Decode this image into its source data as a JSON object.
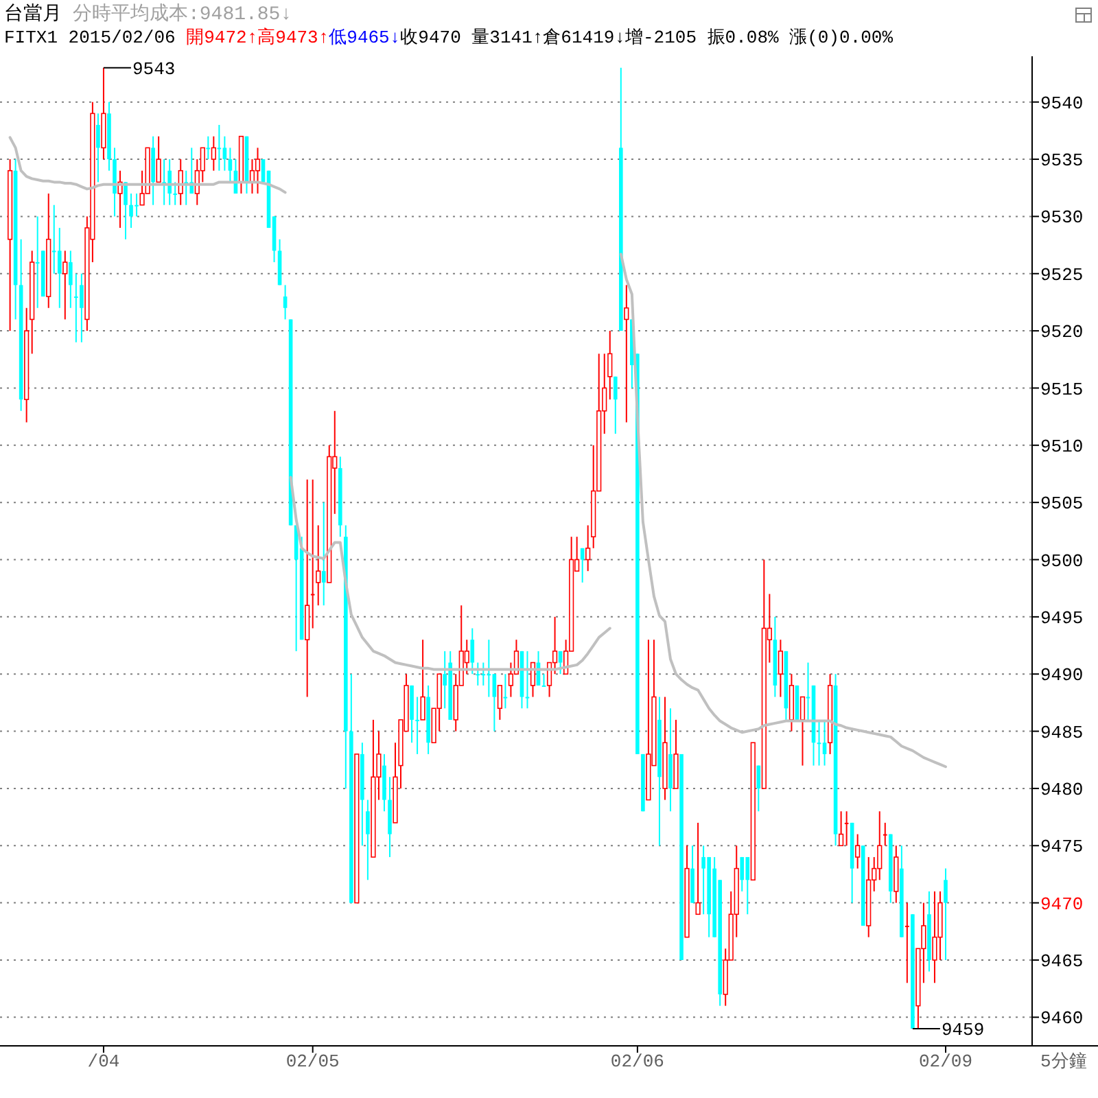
{
  "chart_data": {
    "type": "candlestick",
    "title": "台當月",
    "subtitle": "分時平均成本:9481.85↓",
    "annotations": [
      "FITX1 2015/02/06 ",
      "開9472↑",
      "高9473↑",
      "低9465↓",
      "收9470 量3141↑倉61419↓增-2105 振0.08% 漲(0)0.00%",
      "9543",
      "9459",
      "5分鐘"
    ],
    "categories": [
      null,
      null,
      null,
      null,
      null,
      null,
      null,
      null,
      null,
      null,
      null,
      null,
      null,
      null,
      null,
      null,
      null,
      "/04",
      null,
      null,
      null,
      null,
      null,
      null,
      null,
      null,
      null,
      null,
      null,
      null,
      null,
      null,
      null,
      null,
      null,
      null,
      null,
      null,
      null,
      null,
      null,
      null,
      null,
      null,
      null,
      null,
      null,
      null,
      null,
      null,
      null,
      null,
      null,
      null,
      null,
      "02/05",
      null,
      null,
      null,
      null,
      null,
      null,
      null,
      null,
      null,
      null,
      null,
      null,
      null,
      null,
      null,
      null,
      null,
      null,
      null,
      null,
      null,
      null,
      null,
      null,
      null,
      null,
      null,
      null,
      null,
      null,
      null,
      null,
      null,
      null,
      null,
      null,
      null,
      null,
      null,
      null,
      null,
      null,
      null,
      null,
      null,
      null,
      null,
      null,
      null,
      null,
      null,
      null,
      null,
      null,
      null,
      null,
      null,
      null,
      "02/06",
      null,
      null,
      null,
      null,
      null,
      null,
      null,
      null,
      null,
      null,
      null,
      null,
      null,
      null,
      null,
      null,
      null,
      null,
      null,
      null,
      null,
      null,
      null,
      null,
      null,
      null,
      null,
      null,
      null,
      null,
      null,
      null,
      null,
      null,
      null,
      null,
      null,
      null,
      null,
      null,
      null,
      null,
      null,
      null,
      null,
      null,
      null,
      null,
      null,
      null,
      null,
      null,
      null,
      null,
      null,
      "02/09"
    ],
    "colors": [
      "#ff0000",
      "#00ffff",
      "#00ffff",
      "#ff0000",
      "#ff0000",
      "#00ffff",
      "#00ffff",
      "#ff0000",
      "#00ffff",
      "#00ffff",
      "#ff0000",
      "#00ffff",
      "#00ffff",
      "#00ffff",
      "#ff0000",
      "#ff0000",
      "#00ffff",
      "#ff0000",
      "#00ffff",
      "#00ffff",
      "#ff0000",
      "#00ffff",
      "#00ffff",
      "#00ffff",
      "#ff0000",
      "#ff0000",
      "#00ffff",
      "#ff0000",
      "#00ffff",
      "#00ffff",
      "#00ffff",
      "#ff0000",
      "#00ffff",
      "#00ffff",
      "#ff0000",
      "#ff0000",
      "#00ffff",
      "#ff0000",
      "#00ffff",
      "#00ffff",
      "#00ffff",
      "#00ffff",
      "#ff0000",
      "#00ffff",
      "#ff0000",
      "#ff0000",
      "#00ffff",
      "#00ffff",
      "#00ffff",
      "#00ffff",
      "#00ffff",
      "#00ffff",
      "#00ffff",
      "#00ffff",
      "#ff0000",
      "#ff0000",
      "#ff0000",
      "#00ffff",
      "#ff0000",
      "#ff0000",
      "#00ffff",
      "#00ffff",
      "#00ffff",
      "#ff0000",
      "#00ffff",
      "#00ffff",
      "#ff0000",
      "#ff0000",
      "#00ffff",
      "#00ffff",
      "#ff0000",
      "#ff0000",
      "#ff0000",
      "#00ffff",
      "#00ffff",
      "#ff0000",
      "#00ffff",
      "#ff0000",
      "#ff0000",
      "#00ffff",
      "#00ffff",
      "#ff0000",
      "#ff0000",
      "#ff0000",
      "#00ffff",
      "#00ffff",
      "#00ffff",
      "#00ffff",
      "#00ffff",
      "#ff0000",
      "#00ffff",
      "#ff0000",
      "#ff0000",
      "#00ffff",
      "#00ffff",
      "#ff0000",
      "#00ffff",
      "#00ffff",
      "#ff0000",
      "#ff0000",
      "#00ffff",
      "#ff0000",
      "#ff0000",
      "#ff0000",
      "#00ffff",
      "#ff0000",
      "#ff0000",
      "#ff0000",
      "#ff0000",
      "#ff0000",
      "#00ffff",
      "#00ffff",
      "#ff0000",
      "#00ffff",
      "#00ffff",
      "#00ffff",
      "#ff0000",
      "#ff0000",
      "#00ffff",
      "#ff0000",
      "#00ffff",
      "#ff0000",
      "#00ffff",
      "#ff0000",
      "#00ffff",
      "#ff0000",
      "#00ffff",
      "#00ffff",
      "#00ffff",
      "#00ffff",
      "#ff0000",
      "#ff0000",
      "#ff0000",
      "#00ffff",
      "#00ffff",
      "#ff0000",
      "#00ffff",
      "#ff0000",
      "#ff0000",
      "#00ffff",
      "#ff0000",
      "#00ffff",
      "#ff0000",
      "#00ffff",
      "#ff0000",
      "#00ffff",
      "#00ffff",
      "#00ffff",
      "#00ffff",
      "#ff0000",
      "#00ffff",
      "#ff0000",
      "#ff0000",
      "#00ffff",
      "#ff0000",
      "#00ffff",
      "#ff0000",
      "#ff0000",
      "#ff0000",
      "#ff0000",
      "#00ffff",
      "#ff0000",
      "#00ffff",
      "#ff0000",
      "#00ffff",
      "#ff0000",
      "#ff0000",
      "#00ffff",
      "#ff0000",
      "#ff0000",
      "#00ffff"
    ],
    "ohlc": [
      [
        9528,
        9535,
        9520,
        9534
      ],
      [
        9534,
        9535,
        9521,
        9524
      ],
      [
        9524,
        9528,
        9513,
        9514
      ],
      [
        9514,
        9522,
        9512,
        9520
      ],
      [
        9521,
        9527,
        9518,
        9526
      ],
      [
        9526,
        9530,
        9522,
        9526
      ],
      [
        9527,
        9527,
        9523,
        9523
      ],
      [
        9523,
        9532,
        9522,
        9528
      ],
      [
        9527,
        9531,
        9525,
        9527
      ],
      [
        9527,
        9529,
        9522,
        9525
      ],
      [
        9525,
        9527,
        9521,
        9526
      ],
      [
        9526,
        9527,
        9522,
        9524
      ],
      [
        9523,
        9525,
        9519,
        9523
      ],
      [
        9524,
        9525,
        9519,
        9522
      ],
      [
        9521,
        9530,
        9520,
        9529
      ],
      [
        9528,
        9540,
        9526,
        9539
      ],
      [
        9538,
        9539,
        9533,
        9536
      ],
      [
        9536,
        9543,
        9535,
        9539
      ],
      [
        9539,
        9540,
        9534,
        9535
      ],
      [
        9535,
        9536,
        9530,
        9532
      ],
      [
        9532,
        9534,
        9529,
        9533
      ],
      [
        9533,
        9533,
        9528,
        9531
      ],
      [
        9531,
        9532,
        9529,
        9530
      ],
      [
        9531,
        9532,
        9530,
        9531
      ],
      [
        9531,
        9534,
        9531,
        9532
      ],
      [
        9532,
        9536,
        9532,
        9536
      ],
      [
        9536,
        9537,
        9531,
        9533
      ],
      [
        9533,
        9537,
        9533,
        9535
      ],
      [
        9533,
        9535,
        9531,
        9533
      ],
      [
        9534,
        9535,
        9531,
        9532
      ],
      [
        9532,
        9533,
        9531,
        9532
      ],
      [
        9532,
        9535,
        9531,
        9534
      ],
      [
        9533,
        9534,
        9531,
        9533
      ],
      [
        9533,
        9536,
        9532,
        9532
      ],
      [
        9532,
        9535,
        9531,
        9534
      ],
      [
        9534,
        9536,
        9533,
        9536
      ],
      [
        9536,
        9537,
        9535,
        9536
      ],
      [
        9535,
        9537,
        9534,
        9536
      ],
      [
        9536,
        9538,
        9534,
        9536
      ],
      [
        9536,
        9537,
        9534,
        9535
      ],
      [
        9535,
        9536,
        9533,
        9534
      ],
      [
        9534,
        9535,
        9532,
        9532
      ],
      [
        9533,
        9537,
        9532,
        9537
      ],
      [
        9537,
        9537,
        9532,
        9533
      ],
      [
        9533,
        9535,
        9532,
        9534
      ],
      [
        9534,
        9536,
        9532,
        9535
      ],
      [
        9535,
        9535,
        9533,
        9533
      ],
      [
        9534,
        9534,
        9529,
        9529
      ],
      [
        9530,
        9530,
        9526,
        9527
      ],
      [
        9527,
        9528,
        9524,
        9524
      ],
      [
        9523,
        9524,
        9521,
        9522
      ],
      [
        9521,
        9521,
        9503,
        9503
      ],
      [
        9503,
        9503,
        9492,
        9500
      ],
      [
        9501,
        9502,
        9493,
        9493
      ],
      [
        9493,
        9507,
        9488,
        9496
      ],
      [
        9497,
        9507,
        9494,
        9497
      ],
      [
        9498,
        9503,
        9496,
        9499
      ],
      [
        9499,
        9505,
        9496,
        9498
      ],
      [
        9498,
        9510,
        9498,
        9509
      ],
      [
        9508,
        9513,
        9504,
        9509
      ],
      [
        9508,
        9509,
        9502,
        9503
      ],
      [
        9502,
        9503,
        9480,
        9485
      ],
      [
        9485,
        9490,
        9470,
        9470
      ],
      [
        9470,
        9483,
        9470,
        9483
      ],
      [
        9483,
        9484,
        9475,
        9479
      ],
      [
        9478,
        9479,
        9472,
        9476
      ],
      [
        9474,
        9486,
        9474,
        9481
      ],
      [
        9481,
        9485,
        9479,
        9483
      ],
      [
        9482,
        9483,
        9478,
        9479
      ],
      [
        9479,
        9481,
        9474,
        9476
      ],
      [
        9477,
        9484,
        9477,
        9481
      ],
      [
        9482,
        9486,
        9480,
        9486
      ],
      [
        9485,
        9490,
        9485,
        9489
      ],
      [
        9489,
        9489,
        9484,
        9486
      ],
      [
        9486,
        9488,
        9483,
        9486
      ],
      [
        9486,
        9493,
        9486,
        9488
      ],
      [
        9488,
        9489,
        9483,
        9484
      ],
      [
        9484,
        9487,
        9484,
        9487
      ],
      [
        9487,
        9490,
        9485,
        9490
      ],
      [
        9490,
        9492,
        9487,
        9489
      ],
      [
        9491,
        9492,
        9486,
        9486
      ],
      [
        9486,
        9490,
        9485,
        9489
      ],
      [
        9489,
        9496,
        9489,
        9492
      ],
      [
        9491,
        9493,
        9490,
        9492
      ],
      [
        9493,
        9494,
        9490,
        9491
      ],
      [
        9490,
        9491,
        9489,
        9490
      ],
      [
        9490,
        9491,
        9489,
        9490
      ],
      [
        9490,
        9493,
        9488,
        9490
      ],
      [
        9490,
        9490,
        9485,
        9488
      ],
      [
        9487,
        9489,
        9486,
        9489
      ],
      [
        9488,
        9490,
        9487,
        9488
      ],
      [
        9489,
        9491,
        9488,
        9490
      ],
      [
        9490,
        9493,
        9490,
        9492
      ],
      [
        9492,
        9492,
        9487,
        9488
      ],
      [
        9488,
        9492,
        9487,
        9488
      ],
      [
        9489,
        9491,
        9488,
        9491
      ],
      [
        9491,
        9492,
        9489,
        9489
      ],
      [
        9489,
        9490,
        9489,
        9489
      ],
      [
        9489,
        9491,
        9488,
        9491
      ],
      [
        9491,
        9495,
        9490,
        9492
      ],
      [
        9492,
        9492,
        9490,
        9491
      ],
      [
        9490,
        9493,
        9490,
        9492
      ],
      [
        9492,
        9502,
        9492,
        9500
      ],
      [
        9499,
        9502,
        9499,
        9500
      ],
      [
        9501,
        9501,
        9498,
        9500
      ],
      [
        9500,
        9503,
        9499,
        9501
      ],
      [
        9502,
        9510,
        9501,
        9506
      ],
      [
        9506,
        9518,
        9506,
        9513
      ],
      [
        9513,
        9518,
        9511,
        9515
      ],
      [
        9516,
        9520,
        9514,
        9518
      ],
      [
        9516,
        9516,
        9511,
        9514
      ],
      [
        9536,
        9543,
        9520,
        9520
      ],
      [
        9521,
        9524,
        9512,
        9522
      ],
      [
        9521,
        9521,
        9515,
        9517
      ],
      [
        9518,
        9518,
        9483,
        9483
      ],
      [
        9483,
        9483,
        9478,
        9478
      ],
      [
        9479,
        9493,
        9479,
        9483
      ],
      [
        9482,
        9493,
        9482,
        9488
      ],
      [
        9486,
        9488,
        9475,
        9481
      ],
      [
        9480,
        9488,
        9479,
        9484
      ],
      [
        9483,
        9487,
        9478,
        9480
      ],
      [
        9480,
        9486,
        9480,
        9483
      ],
      [
        9483,
        9483,
        9465,
        9465
      ],
      [
        9467,
        9475,
        9467,
        9473
      ],
      [
        9473,
        9475,
        9470,
        9470
      ],
      [
        9469,
        9477,
        9469,
        9470
      ],
      [
        9474,
        9475,
        9469,
        9473
      ],
      [
        9474,
        9474,
        9467,
        9469
      ],
      [
        9473,
        9474,
        9467,
        9467
      ],
      [
        9472,
        9472,
        9461,
        9462
      ],
      [
        9462,
        9466,
        9461,
        9465
      ],
      [
        9465,
        9471,
        9465,
        9469
      ],
      [
        9469,
        9475,
        9467,
        9473
      ],
      [
        9474,
        9474,
        9471,
        9472
      ],
      [
        9474,
        9474,
        9469,
        9472
      ],
      [
        9472,
        9484,
        9472,
        9484
      ],
      [
        9482,
        9482,
        9478,
        9480
      ],
      [
        9480,
        9500,
        9480,
        9494
      ],
      [
        9493,
        9497,
        9491,
        9494
      ],
      [
        9493,
        9495,
        9488,
        9489
      ],
      [
        9490,
        9493,
        9488,
        9492
      ],
      [
        9492,
        9492,
        9486,
        9487
      ],
      [
        9486,
        9490,
        9485,
        9489
      ],
      [
        9489,
        9489,
        9486,
        9486
      ],
      [
        9486,
        9488,
        9482,
        9488
      ],
      [
        9488,
        9491,
        9486,
        9488
      ],
      [
        9489,
        9489,
        9482,
        9484
      ],
      [
        9484,
        9486,
        9482,
        9484
      ],
      [
        9484,
        9486,
        9482,
        9483
      ],
      [
        9484,
        9490,
        9483,
        9489
      ],
      [
        9489,
        9490,
        9475,
        9476
      ],
      [
        9475,
        9478,
        9475,
        9476
      ],
      [
        9477,
        9478,
        9475,
        9477
      ],
      [
        9477,
        9477,
        9470,
        9473
      ],
      [
        9474,
        9476,
        9473,
        9475
      ],
      [
        9475,
        9475,
        9468,
        9468
      ],
      [
        9468,
        9474,
        9467,
        9472
      ],
      [
        9472,
        9474,
        9471,
        9473
      ],
      [
        9473,
        9478,
        9472,
        9475
      ],
      [
        9476,
        9477,
        9475,
        9476
      ],
      [
        9476,
        9476,
        9470,
        9471
      ],
      [
        9471,
        9475,
        9470,
        9474
      ],
      [
        9473,
        9475,
        9467,
        9467
      ],
      [
        9468,
        9470,
        9463,
        9468
      ],
      [
        9469,
        9469,
        9459,
        9459
      ],
      [
        9461,
        9466,
        9459,
        9466
      ],
      [
        9466,
        9470,
        9463,
        9468
      ],
      [
        9469,
        9471,
        9464,
        9465
      ],
      [
        9465,
        9471,
        9463,
        9467
      ],
      [
        9467,
        9471,
        9465,
        9470
      ],
      [
        9472,
        9473,
        9465,
        9470
      ]
    ],
    "series": [
      {
        "type": "line",
        "color": "#c0c0c0",
        "values": [
          9536.9,
          9536,
          9534,
          9533.5,
          9533.3,
          9533.2,
          9533.1,
          9533.1,
          9533,
          9533,
          9532.9,
          9532.9,
          9532.8,
          9532.6,
          9532.4,
          9532.5,
          9532.7,
          9532.8,
          9532.8,
          9532.8,
          9532.8,
          9532.8,
          9532.8,
          9532.8,
          9532.8,
          9532.8,
          9532.8,
          9532.8,
          9532.8,
          9532.8,
          9532.8,
          9532.8,
          9532.8,
          9532.8,
          9532.8,
          9532.8,
          9532.8,
          9532.8,
          9533,
          9533,
          9533,
          9533,
          9533,
          9533,
          9533,
          9533,
          9532.9,
          9532.8,
          9532.6,
          9532.4,
          9532.1,
          null,
          null,
          null,
          null,
          null,
          null,
          null,
          null,
          null,
          null,
          null,
          null,
          null,
          null,
          null,
          null,
          null,
          null,
          null,
          null,
          null,
          null,
          null,
          null,
          null,
          null,
          null,
          null,
          null,
          null,
          null,
          null,
          null,
          null,
          null,
          null,
          null,
          null,
          null,
          null,
          null,
          null,
          null,
          null,
          null,
          null,
          null,
          null,
          null,
          null,
          null,
          null,
          null,
          null,
          null,
          null,
          null,
          null,
          null,
          null,
          null,
          null,
          null,
          null,
          null,
          null,
          null,
          null,
          null,
          null,
          null,
          null,
          null,
          null,
          null,
          null,
          null,
          null,
          null,
          null,
          null,
          null,
          null,
          null,
          null,
          null,
          null,
          null,
          null,
          null,
          null,
          null,
          null,
          null,
          null,
          null,
          null,
          null,
          null,
          null,
          null,
          null,
          null,
          null,
          null,
          null,
          null,
          null,
          null,
          null,
          null,
          null,
          null,
          null,
          null,
          null,
          null,
          null,
          null,
          null
        ]
      },
      {
        "type": "line",
        "color": "#c0c0c0",
        "values": [
          null,
          null,
          null,
          null,
          null,
          null,
          null,
          null,
          null,
          null,
          null,
          null,
          null,
          null,
          null,
          null,
          null,
          null,
          null,
          null,
          null,
          null,
          null,
          null,
          null,
          null,
          null,
          null,
          null,
          null,
          null,
          null,
          null,
          null,
          null,
          null,
          null,
          null,
          null,
          null,
          null,
          null,
          null,
          null,
          null,
          null,
          null,
          null,
          null,
          null,
          null,
          9507.2,
          9503.5,
          9501,
          9500.6,
          9500.3,
          9500.2,
          9500.1,
          9500.8,
          9501.5,
          9501.5,
          9498,
          9495.2,
          9494.2,
          9493.2,
          9492.6,
          9492,
          9491.8,
          9491.6,
          9491.3,
          9491,
          9490.9,
          9490.8,
          9490.7,
          9490.6,
          9490.5,
          9490.5,
          9490.4,
          9490.4,
          9490.4,
          9490.4,
          9490.4,
          9490.4,
          9490.4,
          9490.4,
          9490.4,
          9490.4,
          9490.4,
          9490.4,
          9490.4,
          9490.4,
          9490.4,
          9490.4,
          9490.4,
          9490.4,
          9490.4,
          9490.4,
          9490.4,
          9490.4,
          9490.4,
          9490.5,
          9490.6,
          9490.7,
          9490.8,
          9491.2,
          9491.8,
          9492.5,
          9493.2,
          9493.6,
          9494,
          null,
          null,
          null,
          null,
          null,
          null,
          null,
          null,
          null,
          null,
          null,
          null,
          null,
          null,
          null,
          null,
          null,
          null,
          null,
          null,
          null,
          null,
          null,
          null,
          null,
          null,
          null,
          null,
          null,
          null,
          null,
          null,
          null,
          null,
          null,
          null,
          null,
          null,
          null,
          null,
          null,
          null,
          null,
          null,
          null,
          null,
          null,
          null,
          null,
          null,
          null,
          null,
          null,
          null,
          null,
          null,
          null,
          null,
          null,
          null,
          null
        ]
      },
      {
        "type": "line",
        "color": "#c0c0c0",
        "values": [
          null,
          null,
          null,
          null,
          null,
          null,
          null,
          null,
          null,
          null,
          null,
          null,
          null,
          null,
          null,
          null,
          null,
          null,
          null,
          null,
          null,
          null,
          null,
          null,
          null,
          null,
          null,
          null,
          null,
          null,
          null,
          null,
          null,
          null,
          null,
          null,
          null,
          null,
          null,
          null,
          null,
          null,
          null,
          null,
          null,
          null,
          null,
          null,
          null,
          null,
          null,
          null,
          null,
          null,
          null,
          null,
          null,
          null,
          null,
          null,
          null,
          null,
          null,
          null,
          null,
          null,
          null,
          null,
          null,
          null,
          null,
          null,
          null,
          null,
          null,
          null,
          null,
          null,
          null,
          null,
          null,
          null,
          null,
          null,
          null,
          null,
          null,
          null,
          null,
          null,
          null,
          null,
          null,
          null,
          null,
          null,
          null,
          null,
          null,
          null,
          null,
          null,
          null,
          null,
          null,
          null,
          null,
          null,
          null,
          null,
          null,
          9526.7,
          9524.5,
          9523.2,
          9512.5,
          9503.3,
          9500,
          9496.8,
          9495.1,
          9494.6,
          9491.3,
          9490,
          9489.5,
          9489.1,
          9488.8,
          9488.6,
          9487.8,
          9487,
          9486.4,
          9485.9,
          9485.6,
          9485.3,
          9485.1,
          9484.9,
          9485,
          9485.1,
          9485.2,
          9485.5,
          9485.6,
          9485.7,
          9485.8,
          9485.9,
          9485.9,
          9485.9,
          9485.9,
          9485.9,
          9485.9,
          9485.9,
          9485.9,
          9485.9,
          9485.6,
          9485.5,
          9485.3,
          9485.2,
          9485.1,
          9485,
          9484.9,
          9484.8,
          9484.7,
          9484.6,
          9484.5,
          9484.1,
          9483.7,
          9483.5,
          9483.3,
          9483,
          9482.7,
          9482.5,
          9482.3,
          9482.1,
          9481.9
        ]
      }
    ],
    "ylim": [
      9457.5,
      9544
    ],
    "yticks": [
      9460,
      9465,
      9470,
      9475,
      9480,
      9485,
      9490,
      9495,
      9500,
      9505,
      9510,
      9515,
      9520,
      9525,
      9530,
      9535,
      9540
    ],
    "grid": "y"
  }
}
